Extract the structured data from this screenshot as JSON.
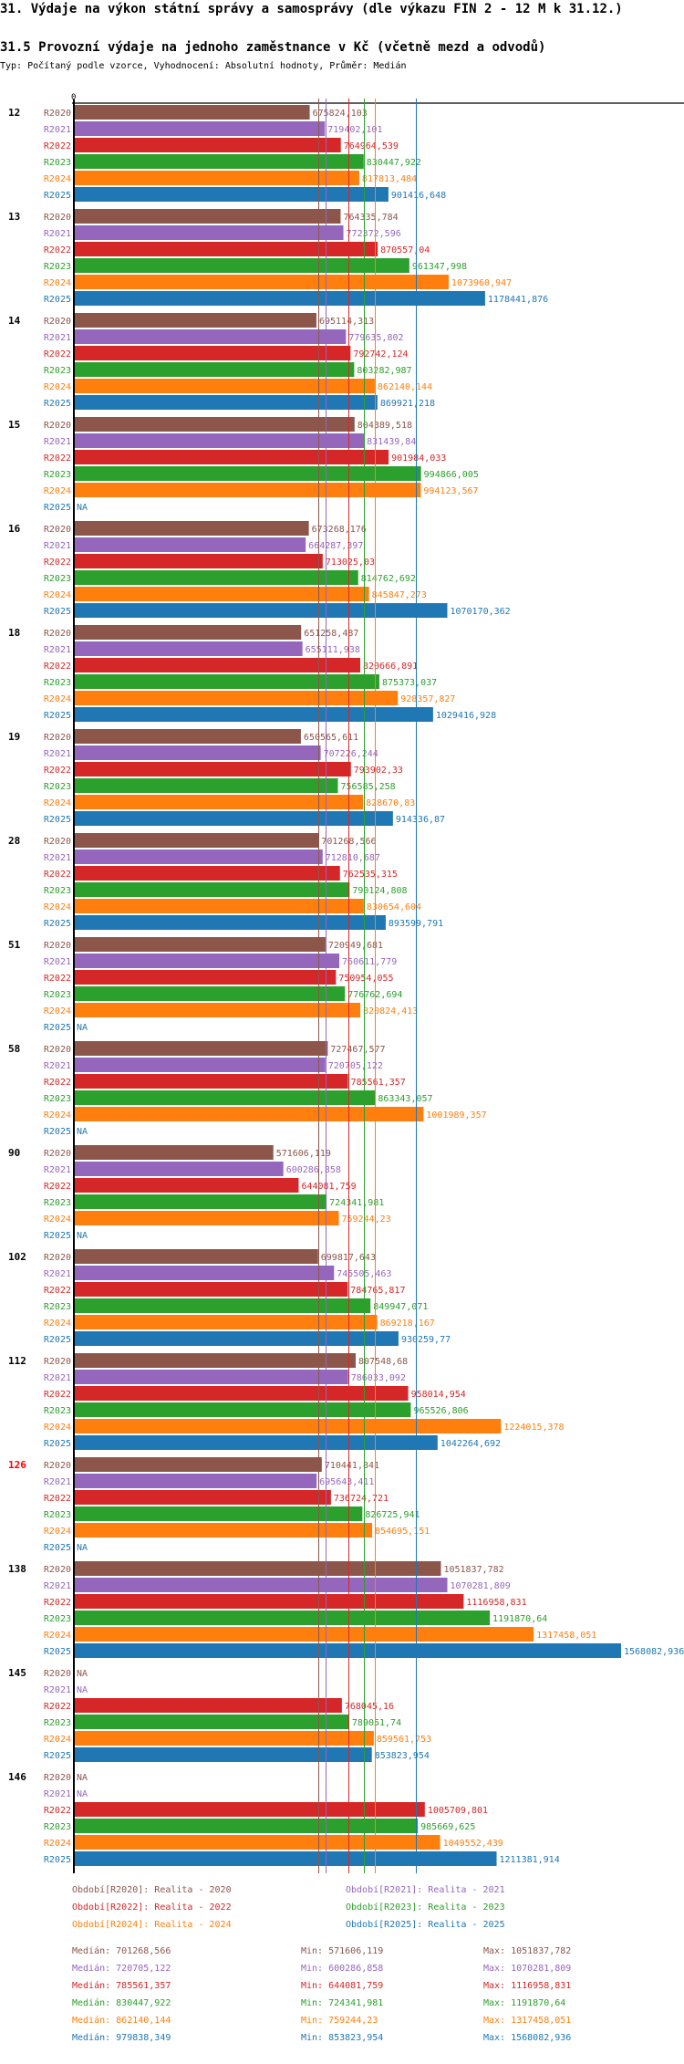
{
  "header": {
    "title": "31. Výdaje na výkon státní správy a samosprávy (dle výkazu FIN 2 - 12 M k 31.12.)",
    "subtitle": "31.5 Provozní výdaje na jednoho zaměstnance v Kč (včetně mezd a odvodů)",
    "typeline": "Typ: Počítaný podle vzorce, Vyhodnocení: Absolutní hodnoty, Průměr: Medián"
  },
  "chart_data": {
    "type": "bar",
    "orientation": "horizontal",
    "title": "31.5 Provozní výdaje na jednoho zaměstnance v Kč (včetně mezd a odvodů)",
    "xlabel": "",
    "ylabel": "",
    "zero_label": "0",
    "xlim": [
      0,
      1568082.936
    ],
    "grid": false,
    "na_label": "NA",
    "highlight_category": "126",
    "highlight_color": "#ff0000",
    "categories": [
      "12",
      "13",
      "14",
      "15",
      "16",
      "18",
      "19",
      "28",
      "51",
      "58",
      "90",
      "102",
      "112",
      "126",
      "138",
      "145",
      "146"
    ],
    "series": [
      {
        "name": "R2020",
        "label": "Období[R2020]: Realita - 2020",
        "color": "#8c564b",
        "values": [
          675824.103,
          764335.784,
          695114.313,
          804389.518,
          673268.176,
          651258.487,
          650565.611,
          701268.566,
          720949.681,
          727467.577,
          571606.119,
          699817.643,
          807548.68,
          710441.841,
          1051837.782,
          null,
          null
        ],
        "display": [
          "675824,103",
          "764335,784",
          "695114,313",
          "804389,518",
          "673268,176",
          "651258,487",
          "650565,611",
          "701268,566",
          "720949,681",
          "727467,577",
          "571606,119",
          "699817,643",
          "807548,68",
          "710441,841",
          "1051837,782",
          "NA",
          "NA"
        ],
        "median": 701268.566,
        "median_label": "Medián: 701268,566",
        "min_label": "Min: 571606,119",
        "max_label": "Max: 1051837,782"
      },
      {
        "name": "R2021",
        "label": "Období[R2021]: Realita - 2021",
        "color": "#9467bd",
        "values": [
          719402.101,
          772372.596,
          779635.802,
          831439.84,
          664287.397,
          655111.938,
          707226.244,
          712810.687,
          760611.779,
          720705.122,
          600286.858,
          745505.463,
          786033.092,
          695643.411,
          1070281.809,
          null,
          null
        ],
        "display": [
          "719402,101",
          "772372,596",
          "779635,802",
          "831439,84",
          "664287,397",
          "655111,938",
          "707226,244",
          "712810,687",
          "760611,779",
          "720705,122",
          "600286,858",
          "745505,463",
          "786033,092",
          "695643,411",
          "1070281,809",
          "NA",
          "NA"
        ],
        "median": 720705.122,
        "median_label": "Medián: 720705,122",
        "min_label": "Min: 600286,858",
        "max_label": "Max: 1070281,809"
      },
      {
        "name": "R2022",
        "label": "Období[R2022]: Realita - 2022",
        "color": "#d62728",
        "values": [
          764964.539,
          870557.04,
          792742.124,
          901984.033,
          713025.03,
          820666.891,
          793902.33,
          762535.315,
          750954.055,
          785561.357,
          644081.759,
          784765.817,
          958014.954,
          736724.721,
          1116958.831,
          768045.16,
          1005709.801
        ],
        "display": [
          "764964,539",
          "870557,04",
          "792742,124",
          "901984,033",
          "713025,03",
          "820666,891",
          "793902,33",
          "762535,315",
          "750954,055",
          "785561,357",
          "644081,759",
          "784765,817",
          "958014,954",
          "736724,721",
          "1116958,831",
          "768045,16",
          "1005709,801"
        ],
        "median": 785561.357,
        "median_label": "Medián: 785561,357",
        "min_label": "Min: 644081,759",
        "max_label": "Max: 1116958,831"
      },
      {
        "name": "R2023",
        "label": "Období[R2023]: Realita - 2023",
        "color": "#2ca02c",
        "values": [
          830447.922,
          961347.998,
          803282.987,
          994866.005,
          814762.692,
          875373.037,
          756585.258,
          790124.808,
          776762.694,
          863343.057,
          724341.981,
          849947.071,
          965526.806,
          826725.941,
          1191870.64,
          789051.74,
          985669.625
        ],
        "display": [
          "830447,922",
          "961347,998",
          "803282,987",
          "994866,005",
          "814762,692",
          "875373,037",
          "756585,258",
          "790124,808",
          "776762,694",
          "863343,057",
          "724341,981",
          "849947,071",
          "965526,806",
          "826725,941",
          "1191870,64",
          "789051,74",
          "985669,625"
        ],
        "median": 830447.922,
        "median_label": "Medián: 830447,922",
        "min_label": "Min: 724341,981",
        "max_label": "Max: 1191870,64"
      },
      {
        "name": "R2024",
        "label": "Období[R2024]: Realita - 2024",
        "color": "#ff7f0e",
        "values": [
          817813.484,
          1073960.947,
          862140.144,
          994123.567,
          845847.273,
          928357.827,
          828670.83,
          830654.604,
          820824.413,
          1001989.357,
          759244.23,
          869218.167,
          1224015.378,
          854695.151,
          1317458.051,
          859561.753,
          1049552.439
        ],
        "display": [
          "817813,484",
          "1073960,947",
          "862140,144",
          "994123,567",
          "845847,273",
          "928357,827",
          "828670,83",
          "830654,604",
          "820824,413",
          "1001989,357",
          "759244,23",
          "869218,167",
          "1224015,378",
          "854695,151",
          "1317458,051",
          "859561,753",
          "1049552,439"
        ],
        "median": 862140.144,
        "median_label": "Medián: 862140,144",
        "min_label": "Min: 759244,23",
        "max_label": "Max: 1317458,051"
      },
      {
        "name": "R2025",
        "label": "Období[R2025]: Realita - 2025",
        "color": "#1f77b4",
        "values": [
          901416.648,
          1178441.876,
          869921.218,
          null,
          1070170.362,
          1029416.928,
          914336.87,
          893599.791,
          null,
          null,
          null,
          930259.77,
          1042264.692,
          null,
          1568082.936,
          853823.954,
          1211381.914
        ],
        "display": [
          "901416,648",
          "1178441,876",
          "869921,218",
          "NA",
          "1070170,362",
          "1029416,928",
          "914336,87",
          "893599,791",
          "NA",
          "NA",
          "NA",
          "930259,77",
          "1042264,692",
          "NA",
          "1568082,936",
          "853823,954",
          "1211381,914"
        ],
        "median": 979838.349,
        "median_label": "Medián: 979838,349",
        "min_label": "Min: 853823,954",
        "max_label": "Max: 1568082,936"
      }
    ]
  }
}
